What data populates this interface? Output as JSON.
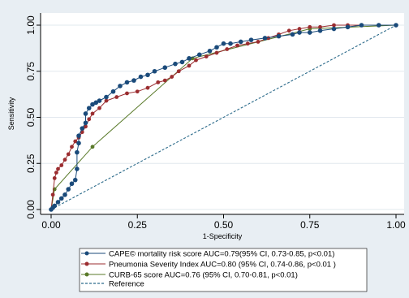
{
  "chart_data": {
    "type": "line",
    "xlabel": "1-Specificity",
    "ylabel": "Sensitivity",
    "xlim": [
      0,
      1
    ],
    "ylim": [
      0,
      1
    ],
    "xticks": [
      0,
      0.25,
      0.5,
      0.75,
      1
    ],
    "xtick_labels": [
      "0.00",
      "0.25",
      "0.50",
      "0.75",
      "1.00"
    ],
    "yticks": [
      0,
      0.25,
      0.5,
      0.75,
      1
    ],
    "ytick_labels": [
      "0.00",
      "0.25",
      "0.50",
      "0.75",
      "1.00"
    ],
    "grid": true,
    "legend_position": "bottom",
    "colors": {
      "cape": "#1a4a7a",
      "psi": "#9b2d30",
      "curb": "#5a7a2a",
      "reference": "#2b6a8a",
      "plot_bg": "#ffffff",
      "frame_bg": "#e8eef3"
    },
    "series": [
      {
        "name": "CAPE© mortality risk score AUC=0.79(95% CI, 0.73-0.85, p<0.01)",
        "key": "cape",
        "x": [
          0,
          0.005,
          0.01,
          0.02,
          0.03,
          0.04,
          0.05,
          0.06,
          0.07,
          0.075,
          0.075,
          0.08,
          0.08,
          0.09,
          0.1,
          0.1,
          0.11,
          0.12,
          0.13,
          0.14,
          0.16,
          0.18,
          0.2,
          0.22,
          0.24,
          0.26,
          0.28,
          0.3,
          0.33,
          0.36,
          0.38,
          0.4,
          0.43,
          0.46,
          0.48,
          0.5,
          0.52,
          0.55,
          0.58,
          0.62,
          0.66,
          0.7,
          0.72,
          0.75,
          0.78,
          0.82,
          0.86,
          0.9,
          0.95,
          1
        ],
        "y": [
          0,
          0.01,
          0.02,
          0.04,
          0.06,
          0.08,
          0.11,
          0.14,
          0.16,
          0.22,
          0.31,
          0.36,
          0.4,
          0.44,
          0.47,
          0.52,
          0.55,
          0.57,
          0.58,
          0.59,
          0.61,
          0.64,
          0.67,
          0.69,
          0.7,
          0.72,
          0.73,
          0.75,
          0.77,
          0.79,
          0.8,
          0.82,
          0.84,
          0.86,
          0.88,
          0.9,
          0.9,
          0.91,
          0.92,
          0.93,
          0.94,
          0.95,
          0.96,
          0.96,
          0.97,
          0.98,
          0.99,
          1,
          1,
          1
        ]
      },
      {
        "name": "Pneumonia Severity Index AUC=0.80 (95% CI, 0.74-0.86, p<0.01 )",
        "key": "psi",
        "x": [
          0,
          0.005,
          0.01,
          0.015,
          0.02,
          0.03,
          0.04,
          0.05,
          0.06,
          0.07,
          0.08,
          0.09,
          0.1,
          0.11,
          0.12,
          0.14,
          0.16,
          0.19,
          0.22,
          0.25,
          0.28,
          0.31,
          0.33,
          0.35,
          0.37,
          0.4,
          0.42,
          0.45,
          0.48,
          0.51,
          0.54,
          0.57,
          0.6,
          0.63,
          0.66,
          0.69,
          0.72,
          0.75,
          0.78,
          0.82,
          0.86,
          0.9,
          0.95,
          1
        ],
        "y": [
          0,
          0.08,
          0.17,
          0.2,
          0.22,
          0.24,
          0.27,
          0.3,
          0.34,
          0.37,
          0.39,
          0.42,
          0.45,
          0.49,
          0.52,
          0.55,
          0.59,
          0.61,
          0.63,
          0.64,
          0.66,
          0.69,
          0.7,
          0.72,
          0.75,
          0.78,
          0.81,
          0.83,
          0.85,
          0.87,
          0.89,
          0.9,
          0.91,
          0.93,
          0.95,
          0.97,
          0.98,
          0.99,
          0.99,
          1,
          1,
          1,
          1,
          1
        ]
      },
      {
        "name": "CURB-65 score AUC=0.76 (95% CI, 0.70-0.81, p<0.01)",
        "key": "curb",
        "x": [
          0,
          0.01,
          0.12,
          0.41,
          0.75,
          1
        ],
        "y": [
          0,
          0.11,
          0.34,
          0.82,
          0.98,
          1
        ]
      },
      {
        "name": "Reference",
        "key": "reference",
        "x": [
          0,
          1
        ],
        "y": [
          0,
          1
        ]
      }
    ]
  }
}
